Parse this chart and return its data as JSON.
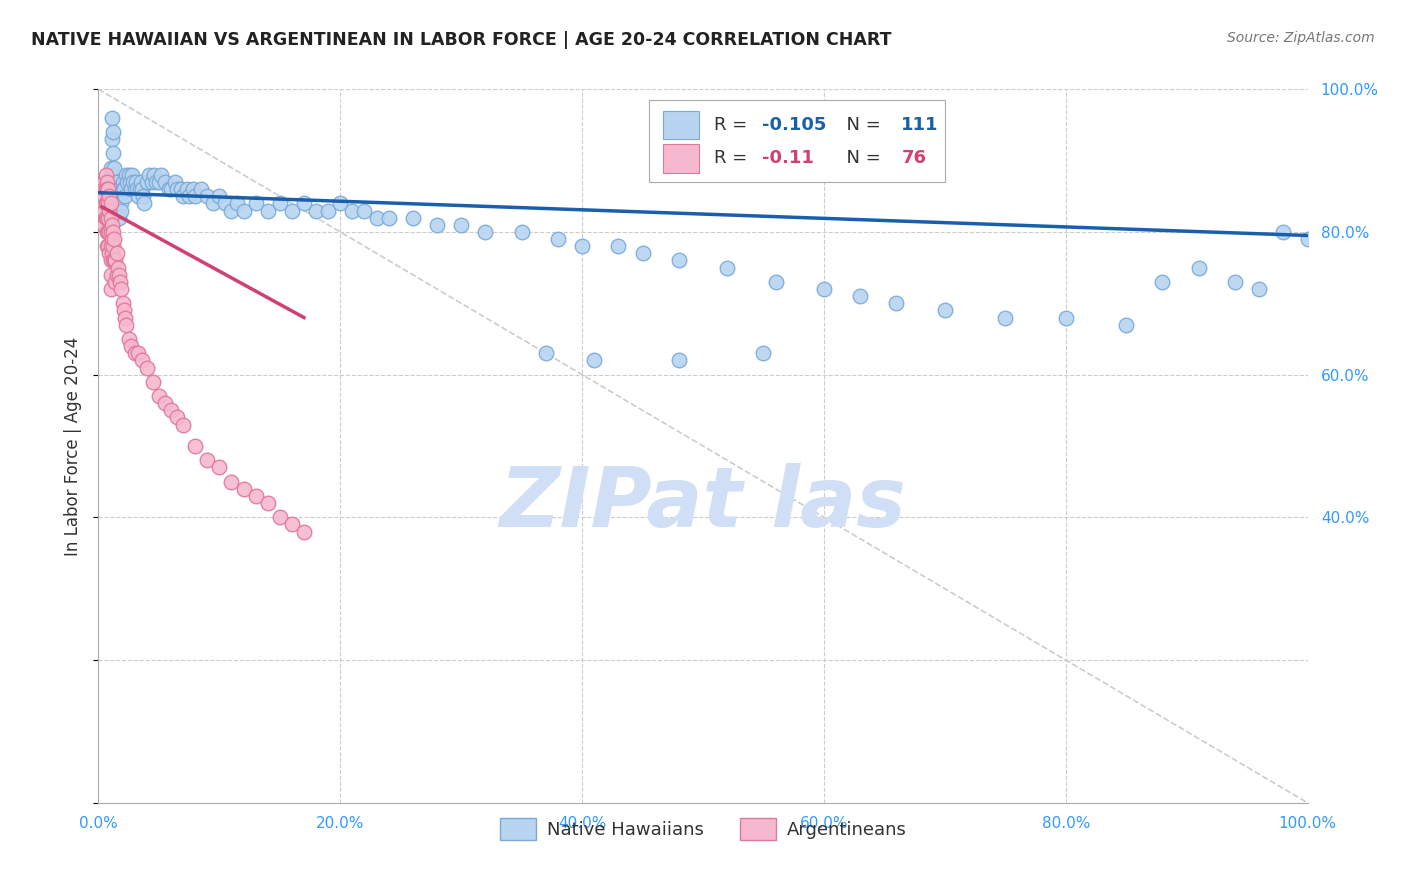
{
  "title": "NATIVE HAWAIIAN VS ARGENTINEAN IN LABOR FORCE | AGE 20-24 CORRELATION CHART",
  "source": "Source: ZipAtlas.com",
  "ylabel": "In Labor Force | Age 20-24",
  "r_blue": -0.105,
  "n_blue": 111,
  "r_pink": -0.11,
  "n_pink": 76,
  "legend_blue": "Native Hawaiians",
  "legend_pink": "Argentineans",
  "xlim": [
    0.0,
    1.0
  ],
  "ylim": [
    0.0,
    1.0
  ],
  "title_color": "#222222",
  "source_color": "#777777",
  "blue_fill": "#b8d4f0",
  "blue_edge": "#7aaad8",
  "pink_fill": "#f5b8ce",
  "pink_edge": "#e07898",
  "blue_line_color": "#1a5fac",
  "pink_line_color": "#d04070",
  "grid_color": "#cccccc",
  "right_axis_color": "#3399ff",
  "watermark_color": "#d0dff5",
  "blue_scatter_x": [
    0.005,
    0.007,
    0.008,
    0.009,
    0.01,
    0.01,
    0.011,
    0.011,
    0.012,
    0.012,
    0.013,
    0.013,
    0.014,
    0.014,
    0.015,
    0.015,
    0.016,
    0.016,
    0.017,
    0.017,
    0.018,
    0.018,
    0.019,
    0.019,
    0.02,
    0.02,
    0.021,
    0.022,
    0.023,
    0.024,
    0.025,
    0.026,
    0.027,
    0.028,
    0.029,
    0.03,
    0.031,
    0.032,
    0.033,
    0.034,
    0.035,
    0.036,
    0.037,
    0.038,
    0.04,
    0.042,
    0.044,
    0.046,
    0.048,
    0.05,
    0.052,
    0.055,
    0.058,
    0.06,
    0.063,
    0.065,
    0.068,
    0.07,
    0.073,
    0.075,
    0.078,
    0.08,
    0.085,
    0.09,
    0.095,
    0.1,
    0.105,
    0.11,
    0.115,
    0.12,
    0.13,
    0.14,
    0.15,
    0.16,
    0.17,
    0.18,
    0.19,
    0.2,
    0.21,
    0.22,
    0.23,
    0.24,
    0.26,
    0.28,
    0.3,
    0.32,
    0.35,
    0.38,
    0.4,
    0.43,
    0.45,
    0.48,
    0.52,
    0.56,
    0.6,
    0.63,
    0.66,
    0.7,
    0.75,
    0.8,
    0.85,
    0.88,
    0.91,
    0.94,
    0.96,
    0.98,
    1.0,
    0.55,
    0.48,
    0.41,
    0.37
  ],
  "blue_scatter_y": [
    0.83,
    0.82,
    0.81,
    0.87,
    0.89,
    0.88,
    0.96,
    0.93,
    0.94,
    0.91,
    0.89,
    0.86,
    0.85,
    0.84,
    0.87,
    0.86,
    0.85,
    0.84,
    0.83,
    0.82,
    0.86,
    0.85,
    0.84,
    0.83,
    0.87,
    0.86,
    0.86,
    0.85,
    0.88,
    0.87,
    0.88,
    0.87,
    0.86,
    0.88,
    0.87,
    0.86,
    0.87,
    0.86,
    0.85,
    0.86,
    0.87,
    0.86,
    0.85,
    0.84,
    0.87,
    0.88,
    0.87,
    0.88,
    0.87,
    0.87,
    0.88,
    0.87,
    0.86,
    0.86,
    0.87,
    0.86,
    0.86,
    0.85,
    0.86,
    0.85,
    0.86,
    0.85,
    0.86,
    0.85,
    0.84,
    0.85,
    0.84,
    0.83,
    0.84,
    0.83,
    0.84,
    0.83,
    0.84,
    0.83,
    0.84,
    0.83,
    0.83,
    0.84,
    0.83,
    0.83,
    0.82,
    0.82,
    0.82,
    0.81,
    0.81,
    0.8,
    0.8,
    0.79,
    0.78,
    0.78,
    0.77,
    0.76,
    0.75,
    0.73,
    0.72,
    0.71,
    0.7,
    0.69,
    0.68,
    0.68,
    0.67,
    0.73,
    0.75,
    0.73,
    0.72,
    0.8,
    0.79,
    0.63,
    0.62,
    0.62,
    0.63
  ],
  "pink_scatter_x": [
    0.003,
    0.004,
    0.004,
    0.005,
    0.005,
    0.005,
    0.005,
    0.005,
    0.006,
    0.006,
    0.006,
    0.006,
    0.007,
    0.007,
    0.007,
    0.007,
    0.007,
    0.007,
    0.008,
    0.008,
    0.008,
    0.008,
    0.008,
    0.009,
    0.009,
    0.009,
    0.009,
    0.01,
    0.01,
    0.01,
    0.01,
    0.01,
    0.01,
    0.01,
    0.011,
    0.011,
    0.011,
    0.012,
    0.012,
    0.012,
    0.013,
    0.013,
    0.014,
    0.014,
    0.015,
    0.015,
    0.016,
    0.017,
    0.018,
    0.019,
    0.02,
    0.021,
    0.022,
    0.023,
    0.025,
    0.027,
    0.03,
    0.033,
    0.036,
    0.04,
    0.045,
    0.05,
    0.055,
    0.06,
    0.065,
    0.07,
    0.08,
    0.09,
    0.1,
    0.11,
    0.12,
    0.13,
    0.14,
    0.15,
    0.16,
    0.17
  ],
  "pink_scatter_y": [
    0.83,
    0.84,
    0.81,
    0.87,
    0.86,
    0.85,
    0.83,
    0.81,
    0.88,
    0.86,
    0.84,
    0.82,
    0.87,
    0.86,
    0.84,
    0.82,
    0.8,
    0.78,
    0.86,
    0.84,
    0.82,
    0.8,
    0.78,
    0.85,
    0.83,
    0.8,
    0.77,
    0.84,
    0.82,
    0.8,
    0.78,
    0.76,
    0.74,
    0.72,
    0.81,
    0.79,
    0.77,
    0.8,
    0.78,
    0.76,
    0.79,
    0.76,
    0.76,
    0.73,
    0.77,
    0.74,
    0.75,
    0.74,
    0.73,
    0.72,
    0.7,
    0.69,
    0.68,
    0.67,
    0.65,
    0.64,
    0.63,
    0.63,
    0.62,
    0.61,
    0.59,
    0.57,
    0.56,
    0.55,
    0.54,
    0.53,
    0.5,
    0.48,
    0.47,
    0.45,
    0.44,
    0.43,
    0.42,
    0.4,
    0.39,
    0.38
  ],
  "blue_trend_x": [
    0.0,
    1.0
  ],
  "blue_trend_y": [
    0.855,
    0.795
  ],
  "pink_trend_x": [
    0.003,
    0.17
  ],
  "pink_trend_y": [
    0.835,
    0.68
  ]
}
